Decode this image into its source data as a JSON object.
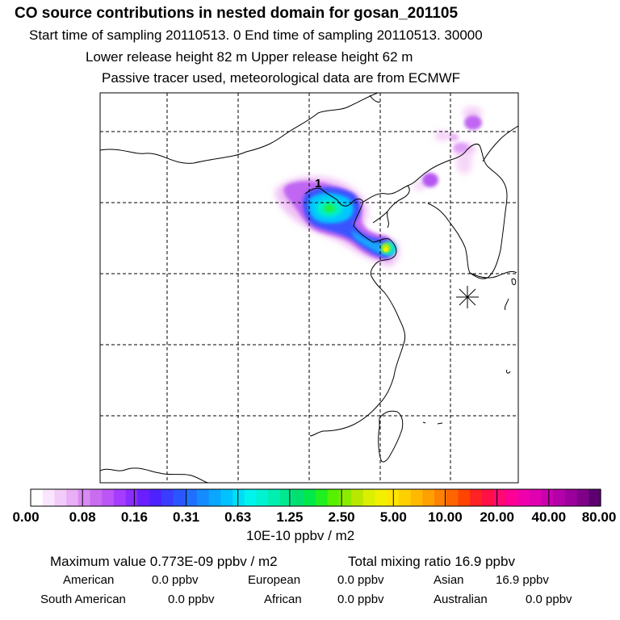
{
  "header": {
    "title": "CO  source contributions in nested domain for gosan_201105",
    "sampling": "Start time of sampling 20110513.     0     End time of sampling 20110513. 30000",
    "release": "Lower release height   82 m          Upper release height   62 m",
    "tracer": "Passive tracer used, meteorological data are from ECMWF"
  },
  "map": {
    "receptor_label": "1",
    "receptor_marker": "asterisk-icon"
  },
  "colorbar": {
    "labels": [
      "0.00",
      "0.08",
      "0.16",
      "0.31",
      "0.63",
      "1.25",
      "2.50",
      "5.00",
      "10.00",
      "20.00",
      "40.00",
      "80.00"
    ],
    "colors": [
      "#ffffff",
      "#fae6fc",
      "#f2ccf8",
      "#e9aef5",
      "#d98af3",
      "#c86cf0",
      "#bb55f5",
      "#a53cff",
      "#8a2cff",
      "#6a1fff",
      "#4d22ff",
      "#3a3cff",
      "#2a56ff",
      "#1f70ff",
      "#148cff",
      "#0aa6ff",
      "#00c2ff",
      "#00ddf6",
      "#00f4ec",
      "#00f2d0",
      "#00eeb0",
      "#00e890",
      "#00e070",
      "#00e84a",
      "#20f020",
      "#56f000",
      "#8cec00",
      "#b8e800",
      "#daf000",
      "#f2f000",
      "#ffe600",
      "#ffd000",
      "#ffba00",
      "#ffa000",
      "#ff8200",
      "#ff6400",
      "#ff4400",
      "#ff2222",
      "#ff1046",
      "#ff0a72",
      "#ff0096",
      "#f000aa",
      "#e000b0",
      "#ca00b0",
      "#b400a8",
      "#9c009c",
      "#80008a",
      "#5c0070"
    ],
    "units": "10E-10 ppbv / m2"
  },
  "stats": {
    "maximum": "Maximum value  0.773E-09 ppbv / m2",
    "total": "Total mixing ratio       16.9 ppbv"
  },
  "contributions": [
    {
      "label": "American",
      "value": "0.0 ppbv"
    },
    {
      "label": "European",
      "value": "0.0 ppbv"
    },
    {
      "label": "Asian",
      "value": "16.9 ppbv"
    },
    {
      "label": "South American",
      "value": "0.0 ppbv"
    },
    {
      "label": "African",
      "value": "0.0 ppbv"
    },
    {
      "label": "Australian",
      "value": "0.0 ppbv"
    }
  ]
}
